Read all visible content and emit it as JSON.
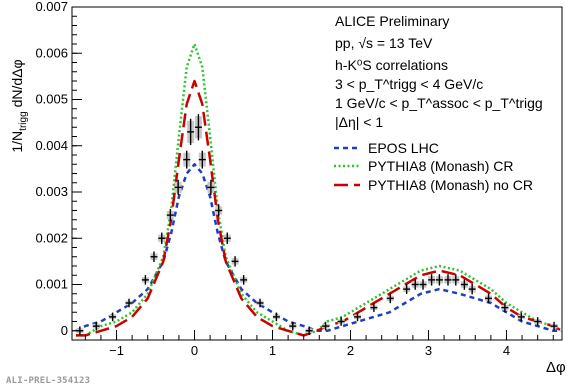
{
  "chart_data": {
    "type": "line",
    "xlabel": "Δφ",
    "ylabel": "1/N_trigg dN/dΔφ",
    "ylabel_parts": {
      "base": "1/N",
      "sub": "trigg",
      "rest": "dN/dΔφ"
    },
    "xlim": [
      -1.571,
      4.712
    ],
    "ylim": [
      0,
      0.007
    ],
    "y_offset": -0.0002,
    "xticks": [
      -1,
      0,
      1,
      2,
      3,
      4
    ],
    "yticks": [
      0,
      0.001,
      0.002,
      0.003,
      0.004,
      0.005,
      0.006,
      0.007
    ],
    "ytick_labels": [
      "0",
      "0.001",
      "0.002",
      "0.003",
      "0.004",
      "0.005",
      "0.006",
      "0.007"
    ],
    "info": [
      "ALICE Preliminary",
      "pp, √s = 13 TeV",
      "h-K⁰S correlations",
      "3 < p_T^trigg < 4 GeV/c",
      "1 GeV/c < p_T^assoc < p_T^trigg",
      "|Δη| < 1"
    ],
    "legend_position": "right",
    "series": [
      {
        "name": "EPOS LHC",
        "color": "#1f3fbf",
        "dash": "5,4",
        "style": "line",
        "x": [
          -1.52,
          -1.4,
          -1.2,
          -1.0,
          -0.8,
          -0.6,
          -0.4,
          -0.3,
          -0.2,
          -0.1,
          0.0,
          0.1,
          0.2,
          0.3,
          0.4,
          0.6,
          0.8,
          1.0,
          1.2,
          1.4,
          1.57,
          1.7,
          1.9,
          2.1,
          2.3,
          2.5,
          2.7,
          2.9,
          3.14,
          3.4,
          3.6,
          3.8,
          4.0,
          4.2,
          4.4,
          4.6,
          4.71
        ],
        "y": [
          0.0,
          0.0001,
          0.0002,
          0.0004,
          0.0006,
          0.0009,
          0.0015,
          0.0021,
          0.0029,
          0.0034,
          0.0036,
          0.0034,
          0.0029,
          0.0021,
          0.0015,
          0.0009,
          0.0006,
          0.0004,
          0.0002,
          0.0001,
          0.0,
          0.0,
          0.0001,
          0.0002,
          0.0003,
          0.0004,
          0.0006,
          0.0008,
          0.0009,
          0.0008,
          0.0007,
          0.0006,
          0.0004,
          0.0002,
          0.0001,
          0.0,
          0.0
        ]
      },
      {
        "name": "PYTHIA8 (Monash) CR",
        "color": "#2bc42b",
        "dash": "2,2.5",
        "style": "line",
        "x": [
          -1.52,
          -1.4,
          -1.2,
          -1.0,
          -0.8,
          -0.6,
          -0.4,
          -0.3,
          -0.2,
          -0.1,
          0.0,
          0.1,
          0.2,
          0.3,
          0.4,
          0.6,
          0.8,
          1.0,
          1.2,
          1.4,
          1.57,
          1.7,
          1.9,
          2.1,
          2.3,
          2.5,
          2.7,
          2.9,
          3.14,
          3.4,
          3.6,
          3.8,
          4.0,
          4.2,
          4.4,
          4.6,
          4.71
        ],
        "y": [
          -0.0001,
          -0.0001,
          0.0001,
          0.0002,
          0.0004,
          0.0008,
          0.0016,
          0.0026,
          0.0042,
          0.0057,
          0.0062,
          0.0057,
          0.0042,
          0.0026,
          0.0016,
          0.0008,
          0.0004,
          0.0002,
          0.0,
          -0.0001,
          0.0,
          0.0002,
          0.0003,
          0.0005,
          0.0007,
          0.0009,
          0.0011,
          0.0013,
          0.0014,
          0.0013,
          0.0011,
          0.0009,
          0.0006,
          0.0004,
          0.0002,
          0.0001,
          0.0
        ]
      },
      {
        "name": "PYTHIA8 (Monash) no CR",
        "color": "#cc0000",
        "dash": "14,6",
        "style": "line",
        "x": [
          -1.52,
          -1.4,
          -1.2,
          -1.0,
          -0.8,
          -0.6,
          -0.4,
          -0.3,
          -0.2,
          -0.1,
          0.0,
          0.1,
          0.2,
          0.3,
          0.4,
          0.6,
          0.8,
          1.0,
          1.2,
          1.4,
          1.57,
          1.7,
          1.9,
          2.1,
          2.3,
          2.5,
          2.7,
          2.9,
          3.14,
          3.4,
          3.6,
          3.8,
          4.0,
          4.2,
          4.4,
          4.6,
          4.71
        ],
        "y": [
          -0.0001,
          -0.0001,
          0.0,
          0.0001,
          0.0003,
          0.0007,
          0.0015,
          0.0024,
          0.0037,
          0.0049,
          0.0054,
          0.0049,
          0.0037,
          0.0024,
          0.0015,
          0.0007,
          0.0003,
          0.0001,
          0.0,
          -0.0001,
          0.0,
          0.0001,
          0.0002,
          0.0004,
          0.0006,
          0.0008,
          0.001,
          0.0012,
          0.0013,
          0.0012,
          0.001,
          0.0008,
          0.0005,
          0.0003,
          0.0002,
          0.0001,
          0.0
        ]
      },
      {
        "name": "data",
        "color": "#000000",
        "style": "points",
        "x": [
          -1.47,
          -1.26,
          -1.05,
          -0.84,
          -0.63,
          -0.52,
          -0.42,
          -0.31,
          -0.21,
          -0.1,
          -0.05,
          0.05,
          0.1,
          0.21,
          0.31,
          0.42,
          0.52,
          0.63,
          0.84,
          1.05,
          1.26,
          1.47,
          1.68,
          1.88,
          2.09,
          2.3,
          2.51,
          2.72,
          2.83,
          2.93,
          3.04,
          3.14,
          3.25,
          3.35,
          3.46,
          3.56,
          3.77,
          3.98,
          4.19,
          4.4,
          4.61
        ],
        "y": [
          0.0,
          0.0001,
          0.0003,
          0.0006,
          0.0011,
          0.0016,
          0.002,
          0.0025,
          0.0031,
          0.0037,
          0.0043,
          0.0044,
          0.0037,
          0.0031,
          0.0026,
          0.002,
          0.0015,
          0.0011,
          0.0006,
          0.0003,
          0.0001,
          0.0,
          0.0001,
          0.0002,
          0.0003,
          0.0005,
          0.0007,
          0.0009,
          0.001,
          0.001,
          0.0011,
          0.0011,
          0.0011,
          0.0011,
          0.001,
          0.0009,
          0.0007,
          0.0005,
          0.0003,
          0.0002,
          0.0001
        ],
        "err": [
          5e-05,
          5e-05,
          5e-05,
          5e-05,
          6e-05,
          7e-05,
          8e-05,
          9e-05,
          0.00012,
          0.00015,
          0.00024,
          0.00024,
          0.00015,
          0.00012,
          9e-05,
          8e-05,
          7e-05,
          6e-05,
          5e-05,
          5e-05,
          5e-05,
          5e-05,
          5e-05,
          5e-05,
          5e-05,
          5e-05,
          6e-05,
          6e-05,
          7e-05,
          7e-05,
          8e-05,
          8e-05,
          8e-05,
          8e-05,
          7e-05,
          7e-05,
          6e-05,
          6e-05,
          5e-05,
          5e-05,
          5e-05
        ]
      }
    ]
  },
  "footer_label": "ALI-PREL-354123"
}
